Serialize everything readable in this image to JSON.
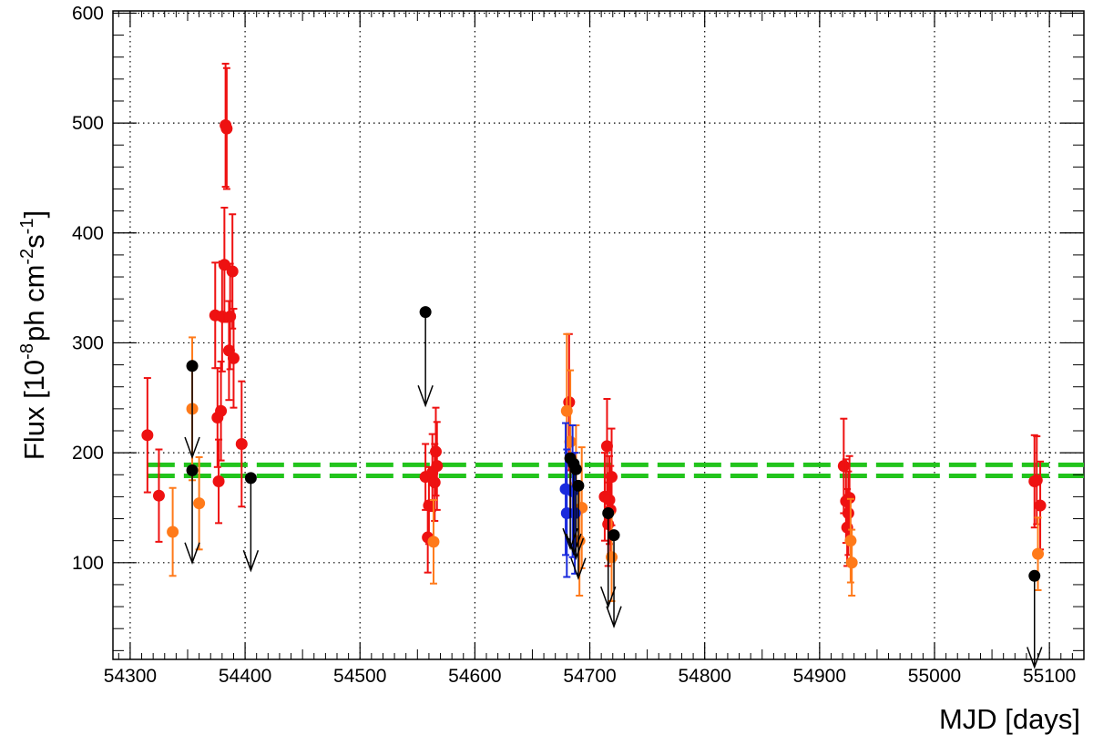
{
  "chart_data": {
    "type": "scatter",
    "title": "",
    "xlabel": "MJD [days]",
    "ylabel": "Flux [10^-8 ph cm^-2 s^-1]",
    "ylabel_parts": {
      "a": "Flux [10",
      "e1": "-8",
      "b": "ph cm",
      "e2": "-2",
      "c": "s",
      "e3": "-1",
      "d": "]"
    },
    "xlim": [
      54285,
      55130
    ],
    "ylim": [
      12,
      602
    ],
    "x_ticks": [
      54300,
      54400,
      54500,
      54600,
      54700,
      54800,
      54900,
      55000,
      55100
    ],
    "x_tick_labels": [
      "54300",
      "54400",
      "54500",
      "54600",
      "54700",
      "54800",
      "54900",
      "55000",
      "55100"
    ],
    "y_ticks": [
      100,
      200,
      300,
      400,
      500,
      600
    ],
    "y_tick_labels": [
      "100",
      "200",
      "300",
      "400",
      "500",
      "600"
    ],
    "grid": true,
    "reference_lines": {
      "color": "#22c41c",
      "style": "dashed",
      "values": [
        179,
        189
      ]
    },
    "series": [
      {
        "color": "#ee1111",
        "points": [
          {
            "x": 54315,
            "y": 216,
            "err": 52
          },
          {
            "x": 54325,
            "y": 161,
            "err": 42
          },
          {
            "x": 54374,
            "y": 325,
            "err": 48
          },
          {
            "x": 54376,
            "y": 232,
            "err": 45
          },
          {
            "x": 54377,
            "y": 174,
            "err": 38
          },
          {
            "x": 54379,
            "y": 238,
            "err": 45
          },
          {
            "x": 54380,
            "y": 324,
            "err": 50
          },
          {
            "x": 54382,
            "y": 371,
            "err": 52
          },
          {
            "x": 54383,
            "y": 498,
            "err": 56
          },
          {
            "x": 54384,
            "y": 495,
            "err": 55
          },
          {
            "x": 54386,
            "y": 293,
            "err": 45
          },
          {
            "x": 54387,
            "y": 324,
            "err": 48
          },
          {
            "x": 54389,
            "y": 365,
            "err": 52
          },
          {
            "x": 54390,
            "y": 286,
            "err": 45
          },
          {
            "x": 54397,
            "y": 208,
            "err": 57
          },
          {
            "x": 54557,
            "y": 178,
            "err": 30
          },
          {
            "x": 54559,
            "y": 123,
            "err": 32
          },
          {
            "x": 54560,
            "y": 152,
            "err": 35
          },
          {
            "x": 54563,
            "y": 182,
            "err": 35
          },
          {
            "x": 54565,
            "y": 173,
            "err": 35
          },
          {
            "x": 54566,
            "y": 201,
            "err": 40
          },
          {
            "x": 54567,
            "y": 188,
            "err": 40
          },
          {
            "x": 54682,
            "y": 246,
            "err": 62
          },
          {
            "x": 54713,
            "y": 160,
            "err": 40
          },
          {
            "x": 54715,
            "y": 206,
            "err": 43
          },
          {
            "x": 54716,
            "y": 135,
            "err": 38
          },
          {
            "x": 54717,
            "y": 157,
            "err": 40
          },
          {
            "x": 54718,
            "y": 148,
            "err": 40
          },
          {
            "x": 54719,
            "y": 178,
            "err": 44
          },
          {
            "x": 54921,
            "y": 188,
            "err": 43
          },
          {
            "x": 54923,
            "y": 156,
            "err": 38
          },
          {
            "x": 54924,
            "y": 132,
            "err": 35
          },
          {
            "x": 54925,
            "y": 145,
            "err": 38
          },
          {
            "x": 54926,
            "y": 159,
            "err": 38
          },
          {
            "x": 55087,
            "y": 174,
            "err": 42
          },
          {
            "x": 55089,
            "y": 175,
            "err": 40
          },
          {
            "x": 55092,
            "y": 152,
            "err": 40
          }
        ]
      },
      {
        "color": "#ff7a1a",
        "points": [
          {
            "x": 54337,
            "y": 128,
            "err": 40
          },
          {
            "x": 54354,
            "y": 240,
            "err": 65
          },
          {
            "x": 54360,
            "y": 154,
            "err": 42
          },
          {
            "x": 54564,
            "y": 119,
            "err": 38
          },
          {
            "x": 54680,
            "y": 238,
            "err": 70
          },
          {
            "x": 54683,
            "y": 210,
            "err": 65
          },
          {
            "x": 54688,
            "y": 170,
            "err": 55
          },
          {
            "x": 54691,
            "y": 120,
            "err": 50
          },
          {
            "x": 54693,
            "y": 150,
            "err": 55
          },
          {
            "x": 54719,
            "y": 105,
            "err": 40
          },
          {
            "x": 54927,
            "y": 120,
            "err": 38
          },
          {
            "x": 54928,
            "y": 100,
            "err": 30
          },
          {
            "x": 55090,
            "y": 108,
            "err": 33
          }
        ]
      },
      {
        "color": "#1a2bdd",
        "points": [
          {
            "x": 54679,
            "y": 167,
            "err": 60
          },
          {
            "x": 54680,
            "y": 145,
            "err": 58
          },
          {
            "x": 54685,
            "y": 165,
            "err": 60
          },
          {
            "x": 54687,
            "y": 145,
            "err": 55
          }
        ]
      }
    ],
    "upper_limits": {
      "color": "#000000",
      "points": [
        {
          "x": 54354,
          "y": 279,
          "to": 196
        },
        {
          "x": 54354,
          "y": 184,
          "to": 100
        },
        {
          "x": 54405,
          "y": 177,
          "to": 93
        },
        {
          "x": 54557,
          "y": 328,
          "to": 243
        },
        {
          "x": 54683,
          "y": 195,
          "to": 113
        },
        {
          "x": 54686,
          "y": 190,
          "to": 108
        },
        {
          "x": 54688,
          "y": 185,
          "to": 104
        },
        {
          "x": 54690,
          "y": 170,
          "to": 86
        },
        {
          "x": 54716,
          "y": 145,
          "to": 60
        },
        {
          "x": 54721,
          "y": 125,
          "to": 42
        },
        {
          "x": 55087,
          "y": 88,
          "to": 5
        }
      ]
    }
  }
}
